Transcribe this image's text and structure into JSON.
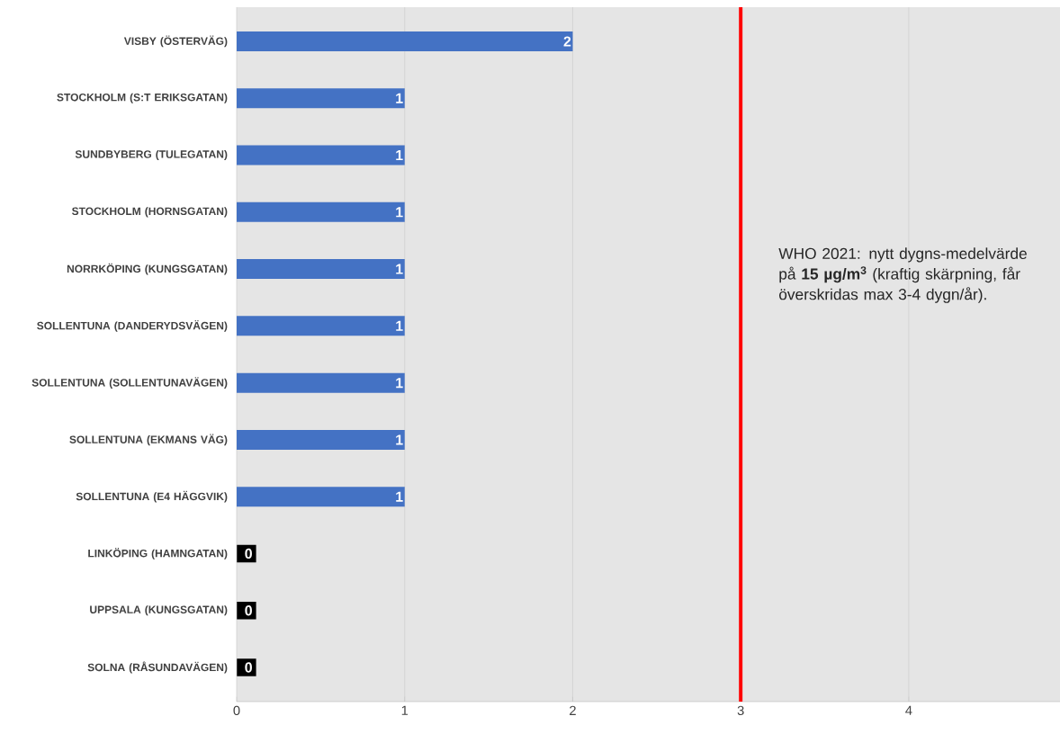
{
  "chart_data": {
    "type": "bar",
    "orientation": "horizontal",
    "categories": [
      "VISBY (ÖSTERVÄG)",
      "STOCKHOLM (S:T ERIKSGATAN)",
      "SUNDBYBERG (TULEGATAN)",
      "STOCKHOLM (HORNSGATAN)",
      "NORRKÖPING (KUNGSGATAN)",
      "SOLLENTUNA (DANDERYDSVÄGEN)",
      "SOLLENTUNA (SOLLENTUNAVÄGEN)",
      "SOLLENTUNA (EKMANS VÄG)",
      "SOLLENTUNA (E4 HÄGGVIK)",
      "LINKÖPING (HAMNGATAN)",
      "UPPSALA (KUNGSGATAN)",
      "SOLNA (RÅSUNDAVÄGEN)"
    ],
    "values": [
      2,
      1,
      1,
      1,
      1,
      1,
      1,
      1,
      1,
      0,
      0,
      0
    ],
    "color": "#4472c4",
    "xlim": [
      0,
      4.9
    ],
    "xticks": [
      0,
      1,
      2,
      3,
      4
    ],
    "grid": "x",
    "data_labels": true,
    "ref_lines": [
      {
        "axis": "x",
        "value": 3,
        "color": "#ff0000",
        "label": "WHO 2021: nytt dygns-medelvärde på **15 µg/m$^{3}$** (kraftig skärpning, får överskridas max 3-4 dygn/år)."
      }
    ]
  }
}
